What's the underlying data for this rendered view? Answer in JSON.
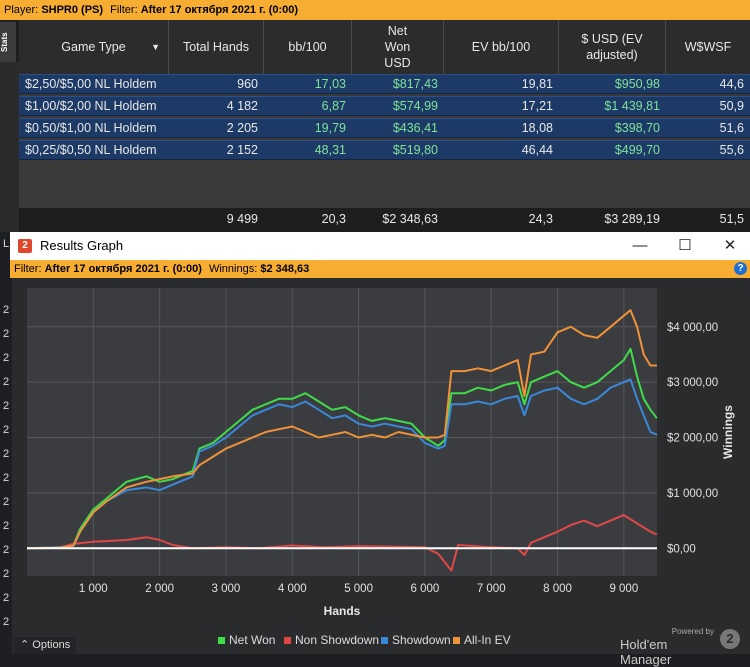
{
  "topbar": {
    "player_label": "Player:",
    "player_value": "SHPR0 (PS)",
    "filter_label": "Filter:",
    "filter_value": "After 17 октября 2021 г. (0:00)"
  },
  "side_tab": "Stats",
  "table": {
    "headers": [
      "Game Type",
      "Total Hands",
      "bb/100",
      "Net Won USD",
      "EV bb/100",
      "$ USD (EV adjusted)",
      "W$WSF"
    ],
    "rows": [
      {
        "game": "$2,50/$5,00 NL Holdem",
        "hands": "960",
        "bb100": "17,03",
        "netwon": "$817,43",
        "ev": "19,81",
        "usd_ev": "$950,98",
        "wwsf": "44,6"
      },
      {
        "game": "$1,00/$2,00 NL Holdem",
        "hands": "4 182",
        "bb100": "6,87",
        "netwon": "$574,99",
        "ev": "17,21",
        "usd_ev": "$1 439,81",
        "wwsf": "50,9"
      },
      {
        "game": "$0,50/$1,00 NL Holdem",
        "hands": "2 205",
        "bb100": "19,79",
        "netwon": "$436,41",
        "ev": "18,08",
        "usd_ev": "$398,70",
        "wwsf": "51,6"
      },
      {
        "game": "$0,25/$0,50 NL Holdem",
        "hands": "2 152",
        "bb100": "48,31",
        "netwon": "$519,80",
        "ev": "46,44",
        "usd_ev": "$499,70",
        "wwsf": "55,6"
      }
    ],
    "totals": {
      "hands": "9 499",
      "bb100": "20,3",
      "netwon": "$2 348,63",
      "ev": "24,3",
      "usd_ev": "$3 289,19",
      "wwsf": "51,5"
    }
  },
  "window": {
    "title": "Results Graph",
    "filter_label": "Filter:",
    "filter_value": "After 17 октября 2021 г. (0:00)",
    "winnings_label": "Winnings:",
    "winnings_value": "$2 348,63",
    "help": "?"
  },
  "side_numbers": [
    "2",
    "2",
    "2",
    "2",
    "2",
    "2",
    "2",
    "2",
    "2",
    "2",
    "2",
    "2",
    "2",
    "2",
    "2",
    "2",
    "2"
  ],
  "side_top": "L",
  "chart_data": {
    "type": "line",
    "xlabel": "Hands",
    "ylabel": "Winnings",
    "x_ticks": [
      "1 000",
      "2 000",
      "3 000",
      "4 000",
      "5 000",
      "6 000",
      "7 000",
      "8 000",
      "9 000"
    ],
    "y_ticks": [
      "$0,00",
      "$1 000,00",
      "$2 000,00",
      "$3 000,00",
      "$4 000,00"
    ],
    "xlim": [
      0,
      9500
    ],
    "ylim": [
      -500,
      4700
    ],
    "colors": {
      "bg": "#3b3c40",
      "grid": "#55565a",
      "zero": "#ffffff"
    },
    "series": [
      {
        "name": "Net Won",
        "color": "#3fdc4a",
        "points": [
          [
            0,
            0
          ],
          [
            500,
            10
          ],
          [
            700,
            50
          ],
          [
            800,
            350
          ],
          [
            1000,
            700
          ],
          [
            1200,
            900
          ],
          [
            1500,
            1200
          ],
          [
            1800,
            1300
          ],
          [
            2000,
            1200
          ],
          [
            2200,
            1250
          ],
          [
            2500,
            1400
          ],
          [
            2600,
            1800
          ],
          [
            2800,
            1900
          ],
          [
            3000,
            2100
          ],
          [
            3200,
            2300
          ],
          [
            3400,
            2500
          ],
          [
            3600,
            2600
          ],
          [
            3800,
            2700
          ],
          [
            4000,
            2700
          ],
          [
            4200,
            2800
          ],
          [
            4400,
            2650
          ],
          [
            4600,
            2500
          ],
          [
            4800,
            2550
          ],
          [
            5000,
            2400
          ],
          [
            5200,
            2300
          ],
          [
            5400,
            2350
          ],
          [
            5600,
            2300
          ],
          [
            5800,
            2250
          ],
          [
            6000,
            2000
          ],
          [
            6200,
            1850
          ],
          [
            6300,
            1950
          ],
          [
            6400,
            2800
          ],
          [
            6600,
            2800
          ],
          [
            6800,
            2900
          ],
          [
            7000,
            2850
          ],
          [
            7200,
            2950
          ],
          [
            7400,
            3000
          ],
          [
            7500,
            2600
          ],
          [
            7600,
            3000
          ],
          [
            7800,
            3100
          ],
          [
            8000,
            3200
          ],
          [
            8200,
            3000
          ],
          [
            8400,
            2900
          ],
          [
            8600,
            3000
          ],
          [
            8800,
            3200
          ],
          [
            9000,
            3400
          ],
          [
            9100,
            3600
          ],
          [
            9200,
            3100
          ],
          [
            9300,
            2700
          ],
          [
            9400,
            2500
          ],
          [
            9499,
            2350
          ]
        ]
      },
      {
        "name": "Non Showdown",
        "color": "#e04848",
        "points": [
          [
            0,
            0
          ],
          [
            500,
            20
          ],
          [
            700,
            80
          ],
          [
            1000,
            120
          ],
          [
            1500,
            150
          ],
          [
            1800,
            200
          ],
          [
            2000,
            150
          ],
          [
            2200,
            60
          ],
          [
            2500,
            0
          ],
          [
            3000,
            20
          ],
          [
            3500,
            0
          ],
          [
            4000,
            50
          ],
          [
            4500,
            20
          ],
          [
            5000,
            40
          ],
          [
            5500,
            30
          ],
          [
            6000,
            20
          ],
          [
            6200,
            -100
          ],
          [
            6400,
            -400
          ],
          [
            6500,
            60
          ],
          [
            7000,
            20
          ],
          [
            7400,
            0
          ],
          [
            7500,
            -120
          ],
          [
            7600,
            100
          ],
          [
            7800,
            200
          ],
          [
            8000,
            300
          ],
          [
            8200,
            420
          ],
          [
            8400,
            500
          ],
          [
            8600,
            400
          ],
          [
            8800,
            500
          ],
          [
            9000,
            600
          ],
          [
            9200,
            450
          ],
          [
            9400,
            300
          ],
          [
            9499,
            250
          ]
        ]
      },
      {
        "name": "Showdown",
        "color": "#3a88d8",
        "points": [
          [
            0,
            0
          ],
          [
            500,
            20
          ],
          [
            700,
            40
          ],
          [
            800,
            300
          ],
          [
            1000,
            650
          ],
          [
            1200,
            850
          ],
          [
            1500,
            1050
          ],
          [
            1800,
            1100
          ],
          [
            2000,
            1050
          ],
          [
            2200,
            1150
          ],
          [
            2500,
            1300
          ],
          [
            2600,
            1750
          ],
          [
            2800,
            1850
          ],
          [
            3000,
            2000
          ],
          [
            3200,
            2200
          ],
          [
            3400,
            2400
          ],
          [
            3600,
            2500
          ],
          [
            3800,
            2600
          ],
          [
            4000,
            2550
          ],
          [
            4200,
            2650
          ],
          [
            4400,
            2500
          ],
          [
            4600,
            2350
          ],
          [
            4800,
            2400
          ],
          [
            5000,
            2250
          ],
          [
            5200,
            2200
          ],
          [
            5400,
            2250
          ],
          [
            5600,
            2200
          ],
          [
            5800,
            2150
          ],
          [
            6000,
            1900
          ],
          [
            6200,
            1800
          ],
          [
            6300,
            1850
          ],
          [
            6400,
            2600
          ],
          [
            6600,
            2600
          ],
          [
            6800,
            2650
          ],
          [
            7000,
            2600
          ],
          [
            7200,
            2700
          ],
          [
            7400,
            2750
          ],
          [
            7500,
            2400
          ],
          [
            7600,
            2750
          ],
          [
            7800,
            2850
          ],
          [
            8000,
            2900
          ],
          [
            8200,
            2700
          ],
          [
            8400,
            2600
          ],
          [
            8600,
            2700
          ],
          [
            8800,
            2900
          ],
          [
            9000,
            3000
          ],
          [
            9100,
            3050
          ],
          [
            9200,
            2700
          ],
          [
            9300,
            2400
          ],
          [
            9400,
            2100
          ],
          [
            9499,
            2050
          ]
        ]
      },
      {
        "name": "All-In EV",
        "color": "#f09238",
        "points": [
          [
            0,
            0
          ],
          [
            500,
            10
          ],
          [
            700,
            50
          ],
          [
            800,
            300
          ],
          [
            1000,
            650
          ],
          [
            1200,
            850
          ],
          [
            1500,
            1100
          ],
          [
            1800,
            1200
          ],
          [
            2000,
            1250
          ],
          [
            2200,
            1300
          ],
          [
            2500,
            1350
          ],
          [
            2600,
            1500
          ],
          [
            2800,
            1650
          ],
          [
            3000,
            1800
          ],
          [
            3200,
            1900
          ],
          [
            3400,
            2000
          ],
          [
            3600,
            2100
          ],
          [
            3800,
            2150
          ],
          [
            4000,
            2200
          ],
          [
            4200,
            2100
          ],
          [
            4400,
            2000
          ],
          [
            4600,
            2050
          ],
          [
            4800,
            2100
          ],
          [
            5000,
            2000
          ],
          [
            5200,
            2050
          ],
          [
            5400,
            2000
          ],
          [
            5600,
            2100
          ],
          [
            5800,
            2050
          ],
          [
            6000,
            2000
          ],
          [
            6200,
            2000
          ],
          [
            6300,
            2050
          ],
          [
            6400,
            3200
          ],
          [
            6600,
            3200
          ],
          [
            6800,
            3250
          ],
          [
            7000,
            3200
          ],
          [
            7200,
            3300
          ],
          [
            7400,
            3400
          ],
          [
            7500,
            2750
          ],
          [
            7600,
            3500
          ],
          [
            7800,
            3550
          ],
          [
            8000,
            3900
          ],
          [
            8200,
            4000
          ],
          [
            8400,
            3850
          ],
          [
            8600,
            3800
          ],
          [
            8800,
            4000
          ],
          [
            9000,
            4200
          ],
          [
            9100,
            4300
          ],
          [
            9200,
            4000
          ],
          [
            9300,
            3500
          ],
          [
            9400,
            3300
          ],
          [
            9499,
            3300
          ]
        ]
      }
    ]
  },
  "options_label": "Options",
  "brand": {
    "powered": "Powered by",
    "name": "Hold'em Manager",
    "logo": "2"
  }
}
